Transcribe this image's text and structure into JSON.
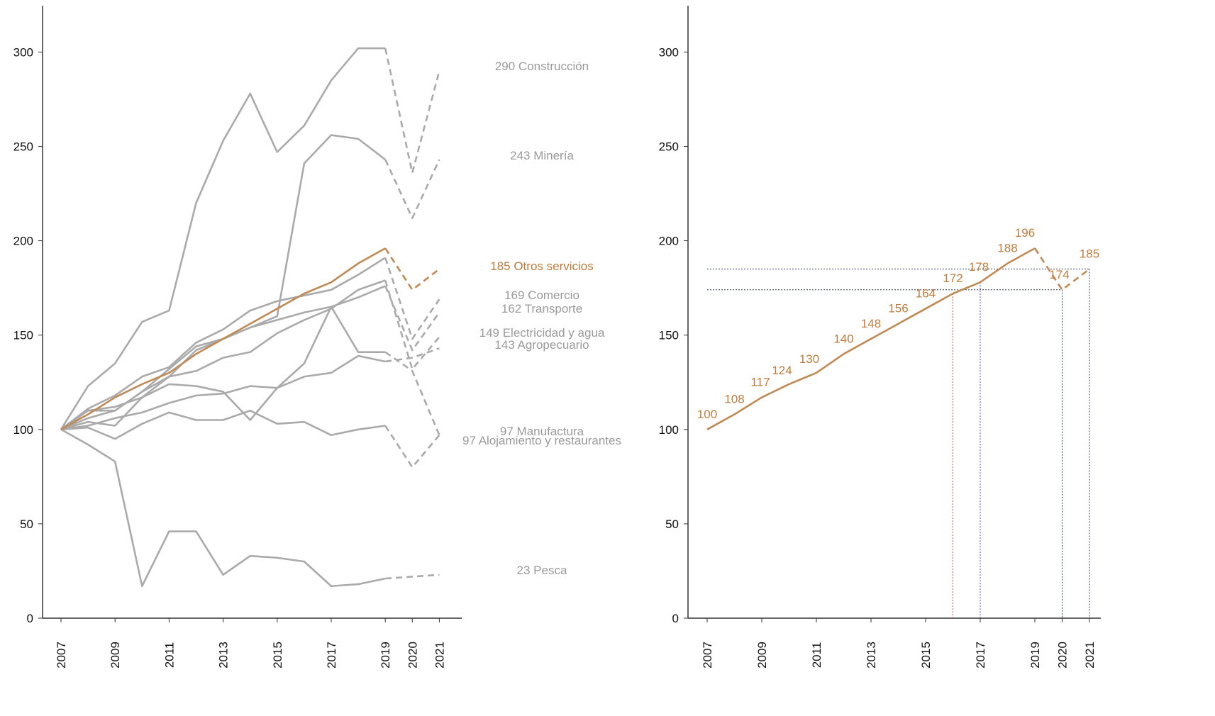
{
  "chart_data": [
    {
      "type": "line",
      "title": "",
      "xlabel": "",
      "ylabel": "",
      "ylim": [
        0,
        325
      ],
      "yticks": [
        0,
        50,
        100,
        150,
        200,
        250,
        300
      ],
      "xticks": [
        "2007",
        "2009",
        "2011",
        "2013",
        "2015",
        "2017",
        "2019",
        "2020",
        "2021"
      ],
      "x": [
        2007,
        2008,
        2009,
        2010,
        2011,
        2012,
        2013,
        2014,
        2015,
        2016,
        2017,
        2018,
        2019,
        2020,
        2021
      ],
      "dashed_from": 2019,
      "grid": false,
      "colors": {
        "gray": "#aaaaaa",
        "highlight": "#c08a55",
        "label_gray": "#9a9a9a",
        "label_highlight": "#c07c3c"
      },
      "series": [
        {
          "name": "Construcción",
          "label": "290 Construcción",
          "highlight": false,
          "values": [
            100,
            123,
            135,
            157,
            163,
            220,
            253,
            278,
            247,
            261,
            285,
            302,
            302,
            236,
            290
          ]
        },
        {
          "name": "Minería",
          "label": "243 Minería",
          "highlight": false,
          "values": [
            100,
            110,
            112,
            117,
            128,
            142,
            148,
            154,
            160,
            241,
            256,
            254,
            243,
            212,
            243
          ]
        },
        {
          "name": "Otros servicios",
          "label": "185 Otros servicios",
          "highlight": true,
          "values": [
            100,
            108,
            117,
            124,
            130,
            140,
            148,
            156,
            164,
            172,
            178,
            188,
            196,
            174,
            185
          ]
        },
        {
          "name": "Comercio",
          "label": "169 Comercio",
          "highlight": false,
          "values": [
            100,
            111,
            118,
            128,
            133,
            146,
            153,
            163,
            168,
            171,
            174,
            182,
            191,
            148,
            169
          ]
        },
        {
          "name": "Transporte",
          "label": "162 Transporte",
          "highlight": false,
          "values": [
            100,
            110,
            110,
            120,
            132,
            144,
            148,
            154,
            158,
            162,
            165,
            170,
            176,
            142,
            162
          ]
        },
        {
          "name": "Electricidad y agua",
          "label": "149 Electricidad y agua",
          "highlight": false,
          "values": [
            100,
            106,
            110,
            120,
            128,
            131,
            138,
            141,
            151,
            158,
            164,
            174,
            179,
            132,
            149
          ]
        },
        {
          "name": "Agropecuario",
          "label": "143 Agropecuario",
          "highlight": false,
          "values": [
            100,
            104,
            102,
            117,
            124,
            123,
            120,
            105,
            122,
            128,
            130,
            139,
            136,
            138,
            143
          ]
        },
        {
          "name": "Manufactura",
          "label": "97 Manufactura",
          "highlight": false,
          "values": [
            100,
            102,
            106,
            109,
            114,
            118,
            119,
            123,
            122,
            135,
            165,
            141,
            141,
            131,
            97
          ]
        },
        {
          "name": "Alojamiento y restaurantes",
          "label": "97 Alojamiento y restaurantes",
          "highlight": false,
          "values": [
            100,
            101,
            95,
            103,
            109,
            105,
            105,
            110,
            103,
            104,
            97,
            100,
            102,
            80,
            97
          ]
        },
        {
          "name": "Pesca",
          "label": "23 Pesca",
          "highlight": false,
          "values": [
            100,
            92,
            83,
            17,
            46,
            46,
            23,
            33,
            32,
            30,
            17,
            18,
            21,
            22,
            23
          ]
        }
      ]
    },
    {
      "type": "line",
      "title": "",
      "xlabel": "",
      "ylabel": "",
      "ylim": [
        0,
        325
      ],
      "yticks": [
        0,
        50,
        100,
        150,
        200,
        250,
        300
      ],
      "xticks": [
        "2007",
        "2009",
        "2011",
        "2013",
        "2015",
        "2017",
        "2019",
        "2020",
        "2021"
      ],
      "x": [
        2007,
        2008,
        2009,
        2010,
        2011,
        2012,
        2013,
        2014,
        2015,
        2016,
        2017,
        2018,
        2019,
        2020,
        2021
      ],
      "dashed_from": 2019,
      "grid": false,
      "series": [
        {
          "name": "Otros servicios",
          "values": [
            100,
            108,
            117,
            124,
            130,
            140,
            148,
            156,
            164,
            172,
            178,
            188,
            196,
            174,
            185
          ],
          "data_labels": [
            "100",
            "108",
            "117",
            "124",
            "130",
            "140",
            "148",
            "156",
            "164",
            "172",
            "178",
            "188",
            "196",
            "174",
            "185"
          ]
        }
      ],
      "reference_lines": [
        {
          "orientation": "horizontal",
          "y": 185,
          "x_from": 2007,
          "x_to": 2021,
          "color": "#2b3a55"
        },
        {
          "orientation": "horizontal",
          "y": 174,
          "x_from": 2007,
          "x_to": 2020,
          "color": "#2b3a55"
        },
        {
          "orientation": "vertical",
          "x": 2016,
          "y_to": 172,
          "color": "#d04a4a"
        },
        {
          "orientation": "vertical",
          "x": 2017,
          "y_to": 178,
          "color": "#4a4ad0"
        },
        {
          "orientation": "vertical",
          "x": 2020,
          "y_to": 174,
          "color": "#2b3a55"
        },
        {
          "orientation": "vertical",
          "x": 2021,
          "y_to": 185,
          "color": "#2b3a55"
        }
      ],
      "colors": {
        "line": "#c08a55",
        "label": "#c07c3c"
      }
    }
  ]
}
